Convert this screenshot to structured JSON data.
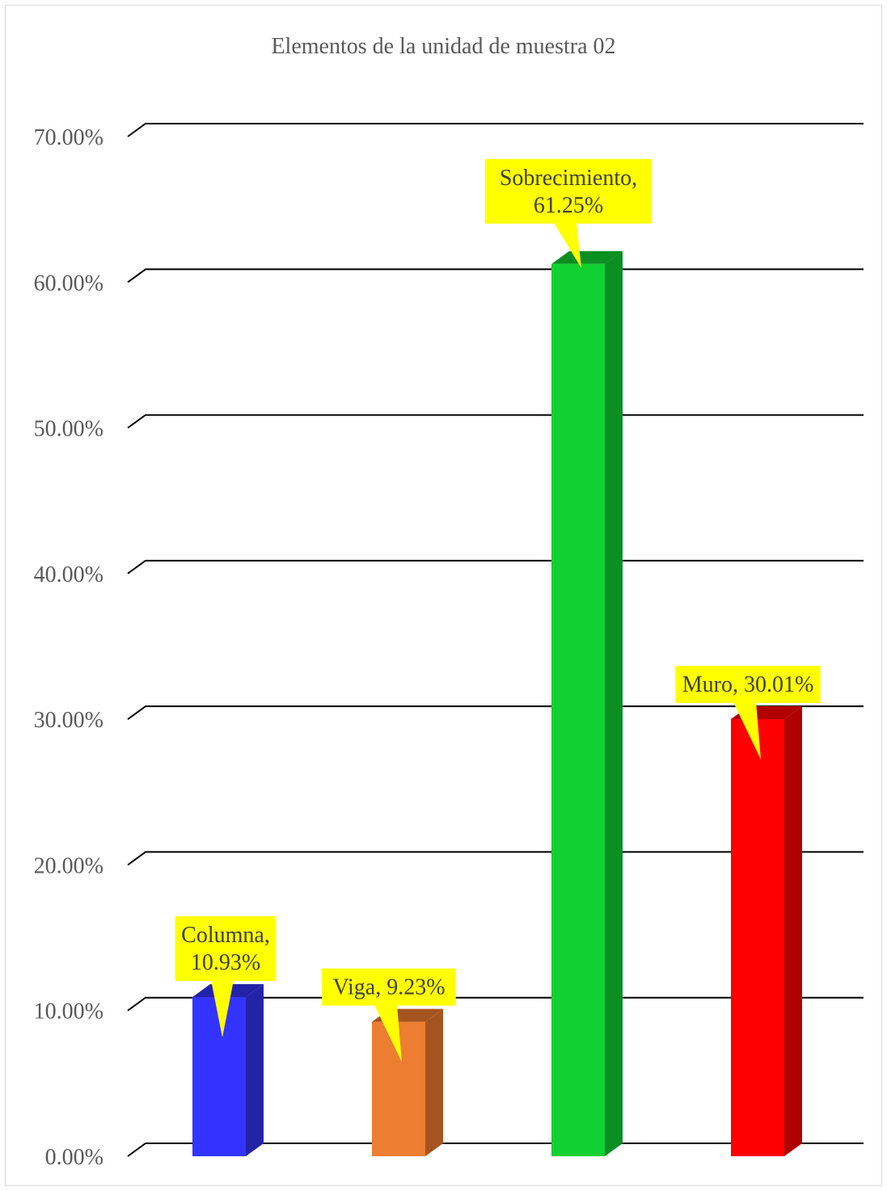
{
  "chart_data": {
    "type": "bar",
    "title": "Elementos de la unidad de muestra 02",
    "xlabel": "",
    "ylabel": "",
    "categories": [
      "Columna",
      "Viga",
      "Sobrecimiento",
      "Muro"
    ],
    "values": [
      10.93,
      9.23,
      61.25,
      30.01
    ],
    "data_labels": [
      [
        "Columna,",
        "10.93%"
      ],
      [
        "Viga, 9.23%"
      ],
      [
        "Sobrecimiento,",
        "61.25%"
      ],
      [
        "Muro, 30.01%"
      ]
    ],
    "colors": [
      "#3333ff",
      "#ed7d31",
      "#11d132",
      "#ff0000"
    ],
    "side_colors": [
      "#2323a8",
      "#a55420",
      "#0b8f21",
      "#b00000"
    ],
    "label_bg": "#ffff00",
    "ylim": [
      0,
      70
    ],
    "yticks": [
      "0.00%",
      "10.00%",
      "20.00%",
      "30.00%",
      "40.00%",
      "50.00%",
      "60.00%",
      "70.00%"
    ],
    "grid": true,
    "legend": "none",
    "style": "3d-column"
  }
}
